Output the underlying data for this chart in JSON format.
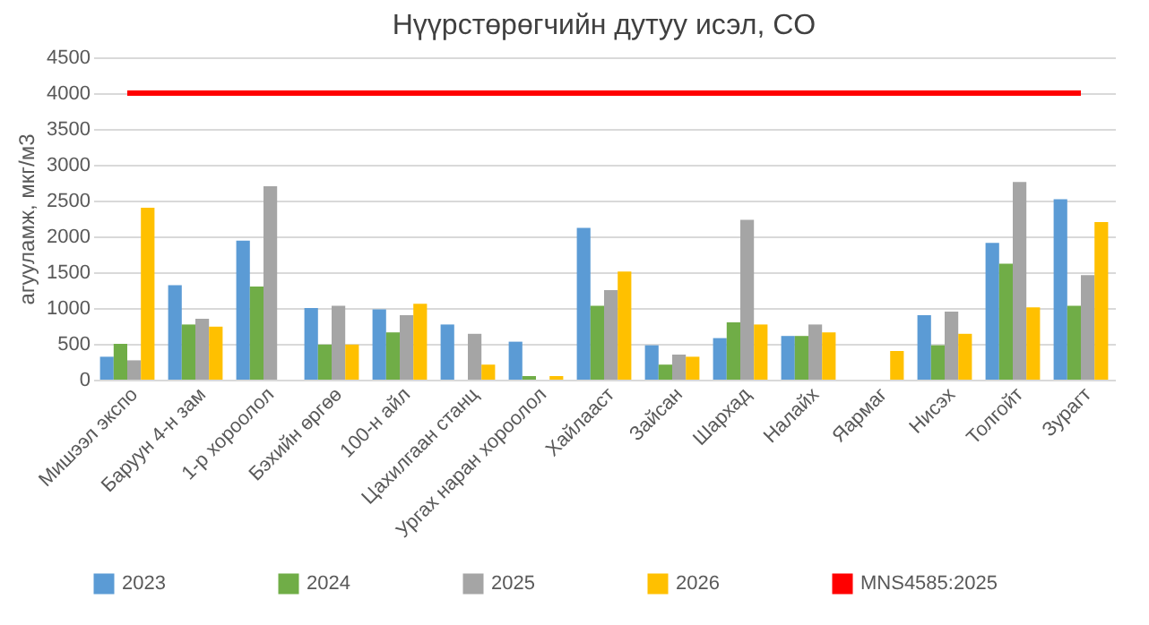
{
  "chart_data": {
    "type": "bar",
    "title": "Нүүрстөрөгчийн дутуу исэл, CO",
    "ylabel": "агууламж, мкг/м3",
    "categories": [
      "Мишээл экспо",
      "Баруун 4-н зам",
      "1-р хороолол",
      "Бэхийн өргөө",
      "100-н айл",
      "Цахилгаан станц",
      "Ургах наран хороолол",
      "Хайлааст",
      "Зайсан",
      "Шархад",
      "Налайх",
      "Яармаг",
      "Нисэх",
      "Толгойт",
      "Зурагт"
    ],
    "series": [
      {
        "name": "2023",
        "color": "#5b9bd5",
        "values": [
          320,
          1320,
          1940,
          1000,
          980,
          770,
          530,
          2120,
          480,
          580,
          610,
          null,
          900,
          1910,
          2520
        ]
      },
      {
        "name": "2024",
        "color": "#70ad47",
        "values": [
          500,
          770,
          1300,
          490,
          660,
          null,
          50,
          1030,
          210,
          800,
          610,
          null,
          480,
          1620,
          1030
        ]
      },
      {
        "name": "2025",
        "color": "#a5a5a5",
        "values": [
          270,
          850,
          2700,
          1030,
          900,
          640,
          null,
          1250,
          350,
          2230,
          770,
          null,
          950,
          2760,
          1460
        ]
      },
      {
        "name": "2026",
        "color": "#ffc000",
        "values": [
          2400,
          740,
          null,
          490,
          1060,
          210,
          50,
          1510,
          320,
          770,
          660,
          400,
          640,
          1010,
          2200
        ]
      },
      {
        "name": "MNS4585:2025",
        "color": "#ff0000",
        "type": "line",
        "values": [
          4000,
          4000,
          4000,
          4000,
          4000,
          4000,
          4000,
          4000,
          4000,
          4000,
          4000,
          4000,
          4000,
          4000,
          4000
        ]
      }
    ],
    "ylim": [
      0,
      4500
    ],
    "yticks": [
      0,
      500,
      1000,
      1500,
      2000,
      2500,
      3000,
      3500,
      4000,
      4500
    ],
    "grid": "y",
    "legend": "bottom"
  }
}
